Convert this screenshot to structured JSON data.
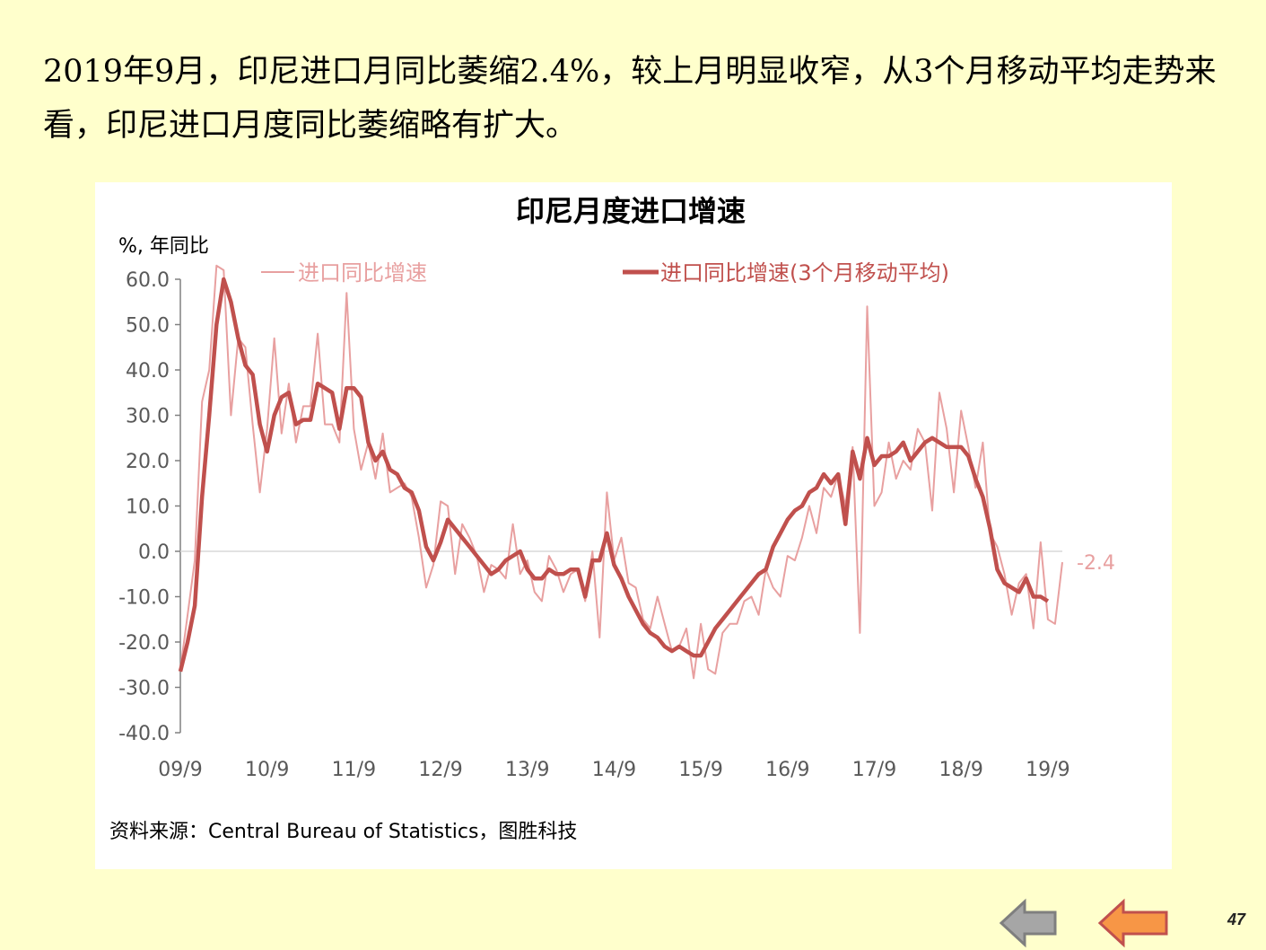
{
  "headline": "2019年9月，印尼进口月同比萎缩2.4%，较上月明显收窄，从3个月移动平均走势来看，印尼进口月度同比萎缩略有扩大。",
  "source": "资料来源：Central Bureau of Statistics，图胜科技",
  "page_number": "47",
  "nav": {
    "prev_icon": "arrow-left-gray",
    "next_icon": "arrow-left-orange"
  },
  "colors": {
    "background": "#ffffcc",
    "raw_series": "#e8a0a0",
    "ma_series": "#c0504d"
  },
  "chart_data": {
    "type": "line",
    "title": "印尼月度进口增速",
    "ylabel": "%, 年同比",
    "ylim": [
      -40,
      60
    ],
    "yticks": [
      "60.0",
      "50.0",
      "40.0",
      "30.0",
      "20.0",
      "10.0",
      "0.0",
      "-10.0",
      "-20.0",
      "-30.0",
      "-40.0"
    ],
    "x_start": "2009-09",
    "x_end": "2019-09",
    "xticks": [
      "09/9",
      "10/9",
      "11/9",
      "12/9",
      "13/9",
      "14/9",
      "15/9",
      "16/9",
      "17/9",
      "18/9",
      "19/9"
    ],
    "annotation": "-2.4",
    "legend_position": "top",
    "series": [
      {
        "name": "进口同比增速",
        "values": [
          -26,
          -14,
          -2,
          33,
          40,
          63,
          62,
          30,
          47,
          45,
          28,
          13,
          27,
          47,
          26,
          37,
          24,
          32,
          32,
          48,
          28,
          28,
          24,
          57,
          27,
          18,
          24,
          16,
          26,
          13,
          14,
          15,
          12,
          3,
          -8,
          -3,
          11,
          10,
          -5,
          6,
          3,
          -1,
          -9,
          -3,
          -4,
          -6,
          6,
          -5,
          -2,
          -9,
          -11,
          -1,
          -4,
          -9,
          -5,
          -4,
          -11,
          0,
          -19,
          13,
          -2,
          3,
          -7,
          -8,
          -15,
          -17,
          -10,
          -16,
          -22,
          -21,
          -17,
          -28,
          -16,
          -26,
          -27,
          -18,
          -16,
          -16,
          -11,
          -10,
          -14,
          -4,
          -8,
          -10,
          -1,
          -2,
          3,
          10,
          4,
          14,
          12,
          17,
          10,
          23,
          -18,
          54,
          10,
          13,
          24,
          16,
          20,
          18,
          27,
          24,
          9,
          35,
          27,
          13,
          31,
          23,
          14,
          24,
          4,
          1,
          -5,
          -14,
          -7,
          -5,
          -17,
          2,
          -15,
          -16,
          -2.4
        ]
      },
      {
        "name": "进口同比增速(3个月移动平均)",
        "values": [
          -26.5,
          -20,
          -12,
          12,
          30,
          50,
          60,
          55,
          47,
          41,
          39,
          28,
          22,
          30,
          34,
          35,
          28,
          29,
          29,
          37,
          36,
          35,
          27,
          36,
          36,
          34,
          24,
          20,
          22,
          18,
          17,
          14,
          13,
          9,
          1,
          -2,
          2,
          7,
          5,
          3,
          1,
          -1,
          -3,
          -5,
          -4,
          -2,
          -1,
          0,
          -4,
          -6,
          -6,
          -4,
          -5,
          -5,
          -4,
          -4,
          -10,
          -2,
          -2,
          4,
          -3,
          -6,
          -10,
          -13,
          -16,
          -18,
          -19,
          -21,
          -22,
          -21,
          -22,
          -23,
          -23,
          -20,
          -17,
          -15,
          -13,
          -11,
          -9,
          -7,
          -5,
          -4,
          1,
          4,
          7,
          9,
          10,
          13,
          14,
          17,
          15,
          17,
          6,
          22,
          16,
          25,
          19,
          21,
          21,
          22,
          24,
          20,
          22,
          24,
          25,
          24,
          23,
          23,
          23,
          21,
          16,
          12,
          5,
          -4,
          -7,
          -8,
          -9,
          -6,
          -10,
          -10,
          -11
        ]
      }
    ]
  }
}
